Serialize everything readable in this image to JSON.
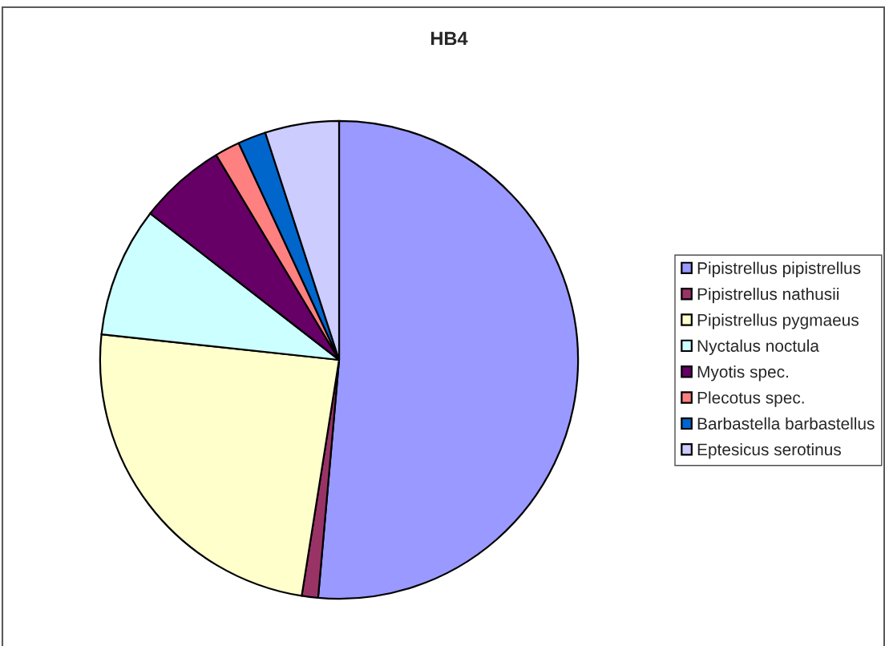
{
  "chart_data": {
    "type": "pie",
    "title": "HB4",
    "categories": [
      "Pipistrellus pipistrellus",
      "Pipistrellus nathusii",
      "Pipistrellus pygmaeus",
      "Nyctalus noctula",
      "Myotis spec.",
      "Plecotus spec.",
      "Barbastella barbastellus",
      "Eptesicus serotinus"
    ],
    "values": [
      51.4,
      1.1,
      24.2,
      8.8,
      5.9,
      1.7,
      1.9,
      5.0
    ],
    "colors": [
      "#9999ff",
      "#993366",
      "#ffffcc",
      "#ccffff",
      "#660066",
      "#ff8080",
      "#0066cc",
      "#ccccff"
    ],
    "legend": "right"
  }
}
